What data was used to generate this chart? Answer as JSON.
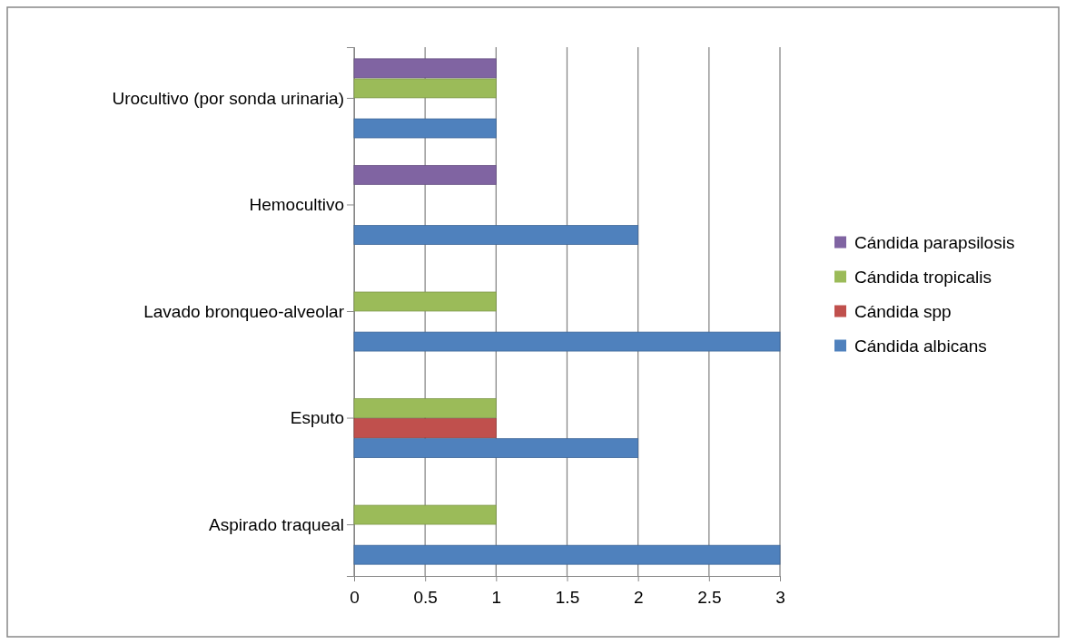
{
  "chart_data": {
    "type": "bar",
    "orientation": "horizontal",
    "categories": [
      "Urocultivo (por sonda urinaria)",
      "Hemocultivo",
      "Lavado bronqueo-alveolar",
      "Esputo",
      "Aspirado traqueal"
    ],
    "series": [
      {
        "name": "Cándida albicans",
        "color": "#4f81bd",
        "values": [
          1,
          2,
          3,
          2,
          3
        ]
      },
      {
        "name": "Cándida spp",
        "color": "#c0504d",
        "values": [
          0,
          0,
          0,
          1,
          0
        ]
      },
      {
        "name": "Cándida tropicalis",
        "color": "#9bbb59",
        "values": [
          1,
          0,
          1,
          1,
          1
        ]
      },
      {
        "name": "Cándida parapsilosis",
        "color": "#8064a2",
        "values": [
          1,
          1,
          0,
          0,
          0
        ]
      }
    ],
    "xlim": [
      0,
      3
    ],
    "xticks": [
      0,
      0.5,
      1,
      1.5,
      2,
      2.5,
      3
    ],
    "grid": "x",
    "legend": "right"
  }
}
